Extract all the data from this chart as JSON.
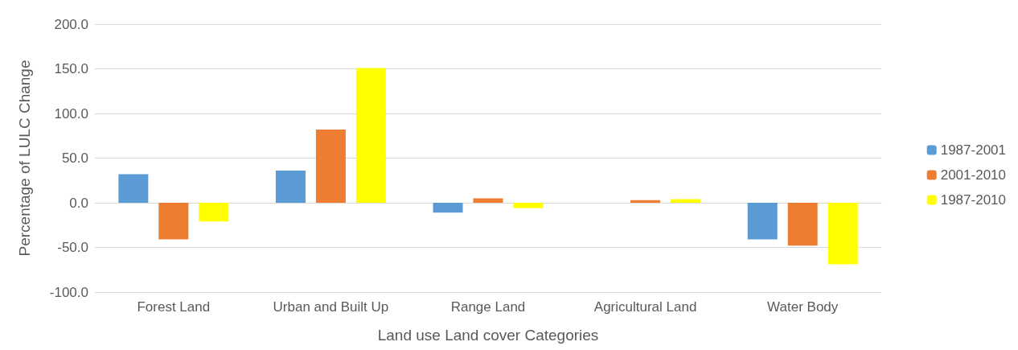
{
  "chart_data": {
    "type": "bar",
    "xlabel": "Land use Land cover Categories",
    "ylabel": "Percentage of LULC Change",
    "categories": [
      "Forest Land",
      "Urban and Built Up",
      "Range Land",
      "Agricultural Land",
      "Water Body"
    ],
    "series": [
      {
        "name": "1987-2001",
        "color": "#5b9bd5",
        "values": [
          32,
          36,
          -11,
          0,
          -41
        ]
      },
      {
        "name": "2001-2010",
        "color": "#ed7d31",
        "values": [
          -41,
          82,
          5,
          3,
          -48
        ]
      },
      {
        "name": "1987-2010",
        "color": "#ffff00",
        "values": [
          -21,
          151,
          -6,
          4,
          -69
        ]
      }
    ],
    "ylim": [
      -100,
      200
    ],
    "yticks": [
      {
        "value": -100,
        "label": "-100.0"
      },
      {
        "value": -50,
        "label": "-50.0"
      },
      {
        "value": 0,
        "label": "0.0"
      },
      {
        "value": 50,
        "label": "50.0"
      },
      {
        "value": 100,
        "label": "100.0"
      },
      {
        "value": 150,
        "label": "150.0"
      },
      {
        "value": 200,
        "label": "200.0"
      }
    ],
    "grid": "y",
    "legend": "right"
  }
}
